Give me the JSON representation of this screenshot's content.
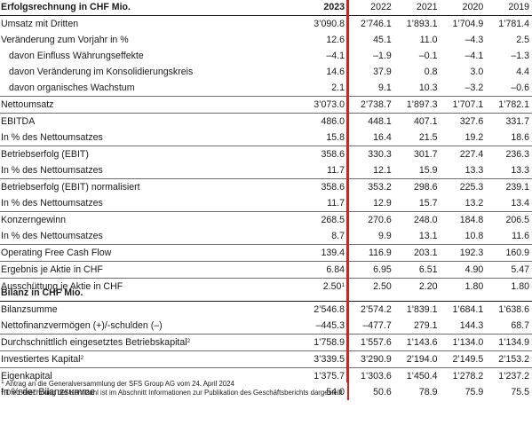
{
  "income": {
    "title": "Erfolgsrechnung in CHF Mio.",
    "years": [
      "2023",
      "2022",
      "2021",
      "2020",
      "2019"
    ],
    "rows": [
      {
        "label": "Umsatz mit Dritten",
        "values": [
          "3’090.8",
          "2’746.1",
          "1’893.1",
          "1’704.9",
          "1’781.4"
        ]
      },
      {
        "label": "Veränderung zum Vorjahr in %",
        "values": [
          "12.6",
          "45.1",
          "11.0",
          "–4.3",
          "2.5"
        ]
      },
      {
        "label": "davon Einfluss Währungseffekte",
        "values": [
          "–4.1",
          "–1.9",
          "–0.1",
          "–4.1",
          "–1.3"
        ]
      },
      {
        "label": "davon Veränderung im Konsolidierungskreis",
        "values": [
          "14.6",
          "37.9",
          "0.8",
          "3.0",
          "4.4"
        ]
      },
      {
        "label": "davon organisches Wachstum",
        "values": [
          "2.1",
          "9.1",
          "10.3",
          "–3.2",
          "–0.6"
        ]
      },
      {
        "label": "Nettoumsatz",
        "values": [
          "3’073.0",
          "2’738.7",
          "1’897.3",
          "1’707.1",
          "1’782.1"
        ]
      },
      {
        "label": "EBITDA",
        "values": [
          "486.0",
          "448.1",
          "407.1",
          "327.6",
          "331.7"
        ]
      },
      {
        "label": "In % des Nettoumsatzes",
        "values": [
          "15.8",
          "16.4",
          "21.5",
          "19.2",
          "18.6"
        ]
      },
      {
        "label": "Betriebserfolg (EBIT)",
        "values": [
          "358.6",
          "330.3",
          "301.7",
          "227.4",
          "236.3"
        ]
      },
      {
        "label": "In % des Nettoumsatzes",
        "values": [
          "11.7",
          "12.1",
          "15.9",
          "13.3",
          "13.3"
        ]
      },
      {
        "label": "Betriebserfolg (EBIT) normalisiert",
        "values": [
          "358.6",
          "353.2",
          "298.6",
          "225.3",
          "239.1"
        ]
      },
      {
        "label": "In % des Nettoumsatzes",
        "values": [
          "11.7",
          "12.9",
          "15.7",
          "13.2",
          "13.4"
        ]
      },
      {
        "label": "Konzerngewinn",
        "values": [
          "268.5",
          "270.6",
          "248.0",
          "184.8",
          "206.5"
        ]
      },
      {
        "label": "In % des Nettoumsatzes",
        "values": [
          "8.7",
          "9.9",
          "13.1",
          "10.8",
          "11.6"
        ]
      },
      {
        "label": "Operating Free Cash Flow",
        "values": [
          "139.4",
          "116.9",
          "203.1",
          "192.3",
          "160.9"
        ]
      },
      {
        "label": "Ergebnis je Aktie in CHF",
        "values": [
          "6.84",
          "6.95",
          "6.51",
          "4.90",
          "5.47"
        ]
      },
      {
        "label": "Ausschüttung je Aktie in CHF",
        "values": [
          "2.50",
          "2.50",
          "2.20",
          "1.80",
          "1.80"
        ],
        "note_2023": "1"
      }
    ]
  },
  "balance": {
    "title": "Bilanz in CHF Mio.",
    "rows": [
      {
        "label": "Bilanzsumme",
        "values": [
          "2’546.8",
          "2’574.2",
          "1’839.1",
          "1’684.1",
          "1’638.6"
        ]
      },
      {
        "label": "Nettofinanzvermögen (+)/-schulden (–)",
        "values": [
          "–445.3",
          "–477.7",
          "279.1",
          "144.3",
          "68.7"
        ]
      },
      {
        "label": "Durchschnittlich eingesetztes Betriebskapital",
        "label_note": "2",
        "values": [
          "1’758.9",
          "1’557.6",
          "1’143.6",
          "1’134.0",
          "1’134.9"
        ]
      },
      {
        "label": "Investiertes Kapital",
        "label_note": "2",
        "values": [
          "3’339.5",
          "3’290.9",
          "2’194.0",
          "2’149.5",
          "2’153.2"
        ]
      },
      {
        "label": "Eigenkapital",
        "values": [
          "1’375.7",
          "1’303.6",
          "1’450.4",
          "1’278.2",
          "1’237.2"
        ]
      },
      {
        "label": "In % der Bilanzsumme",
        "values": [
          "54.0",
          "50.6",
          "78.9",
          "75.9",
          "75.5"
        ]
      }
    ]
  },
  "footnotes": [
    {
      "mark": "1",
      "text": "Antrag an die Generalversammlung der SFS Group AG vom 24. April 2024"
    },
    {
      "mark": "2",
      "text": "Die Berechnung der Kennzahl ist im Abschnitt Informationen zur Publikation des Geschäftsberichts dargestellt"
    }
  ],
  "colors": {
    "accent_line": "#d32020",
    "text": "#1a1a1a"
  }
}
